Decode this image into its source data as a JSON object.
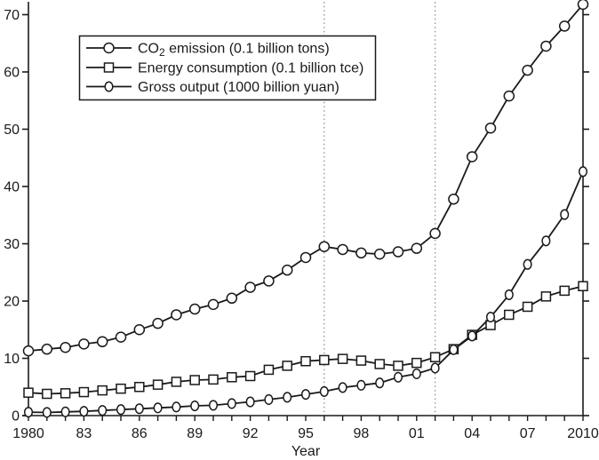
{
  "chart_data": {
    "type": "line",
    "title": "",
    "xlabel": "Year",
    "ylabel": "",
    "xlim": [
      1980,
      2010
    ],
    "ylim": [
      0,
      72.5
    ],
    "grid": false,
    "legend_position": "top-left",
    "x": [
      1980,
      1981,
      1982,
      1983,
      1984,
      1985,
      1986,
      1987,
      1988,
      1989,
      1990,
      1991,
      1992,
      1993,
      1994,
      1995,
      1996,
      1997,
      1998,
      1999,
      2000,
      2001,
      2002,
      2003,
      2004,
      2005,
      2006,
      2007,
      2008,
      2009,
      2010
    ],
    "x_labeled_ticks": [
      {
        "year": 1980,
        "label": "1980"
      },
      {
        "year": 1983,
        "label": "83"
      },
      {
        "year": 1986,
        "label": "86"
      },
      {
        "year": 1989,
        "label": "89"
      },
      {
        "year": 1992,
        "label": "92"
      },
      {
        "year": 1995,
        "label": "95"
      },
      {
        "year": 1998,
        "label": "98"
      },
      {
        "year": 2001,
        "label": "01"
      },
      {
        "year": 2004,
        "label": "04"
      },
      {
        "year": 2007,
        "label": "07"
      },
      {
        "year": 2010,
        "label": "2010"
      }
    ],
    "y_ticks": [
      {
        "value": 0,
        "label": "0"
      },
      {
        "value": 10,
        "label": "10"
      },
      {
        "value": 20,
        "label": "20"
      },
      {
        "value": 30,
        "label": "30"
      },
      {
        "value": 40,
        "label": "40"
      },
      {
        "value": 50,
        "label": "50"
      },
      {
        "value": 60,
        "label": "60"
      },
      {
        "value": 70,
        "label": "70"
      }
    ],
    "vlines": [
      {
        "year": 1996,
        "style": "dotted"
      },
      {
        "year": 2002,
        "style": "dotted"
      }
    ],
    "series": [
      {
        "id": "co2-emission",
        "label_pre": "CO",
        "label_sub": "2",
        "label_post": " emission (0.1 billion tons)",
        "marker": "circle",
        "values": [
          11.3,
          11.6,
          11.9,
          12.5,
          12.9,
          13.7,
          15.0,
          16.1,
          17.6,
          18.6,
          19.4,
          20.5,
          22.4,
          23.5,
          25.4,
          27.6,
          29.5,
          29.0,
          28.4,
          28.2,
          28.6,
          29.2,
          31.8,
          37.8,
          45.2,
          50.2,
          55.8,
          60.3,
          64.5,
          68.0,
          71.8
        ]
      },
      {
        "id": "energy-consumption",
        "label_pre": "Energy consumption (0.1 billion tce)",
        "label_sub": "",
        "label_post": "",
        "marker": "square",
        "values": [
          4.0,
          3.8,
          3.9,
          4.1,
          4.4,
          4.7,
          5.0,
          5.4,
          5.9,
          6.2,
          6.3,
          6.7,
          6.9,
          8.0,
          8.7,
          9.5,
          9.7,
          9.9,
          9.6,
          9.0,
          8.7,
          9.2,
          10.2,
          11.6,
          14.1,
          15.8,
          17.6,
          19.0,
          20.8,
          21.8,
          22.6
        ]
      },
      {
        "id": "gross-output",
        "label_pre": "Gross output (1000 billion yuan)",
        "label_sub": "",
        "label_post": "",
        "marker": "ellipse",
        "values": [
          0.6,
          0.55,
          0.65,
          0.75,
          0.9,
          1.05,
          1.2,
          1.35,
          1.5,
          1.7,
          1.8,
          2.1,
          2.4,
          2.8,
          3.2,
          3.7,
          4.2,
          4.9,
          5.3,
          5.7,
          6.7,
          7.3,
          8.3,
          11.5,
          13.9,
          17.2,
          21.1,
          26.4,
          30.5,
          35.1,
          42.6
        ]
      }
    ],
    "colors": {
      "axis": "#1a1a1a",
      "line": "#1a1a1a",
      "marker_fill": "#ffffff",
      "dotted_line": "#8f8f8f",
      "background": "#ffffff",
      "text": "#1a1a1a"
    }
  }
}
